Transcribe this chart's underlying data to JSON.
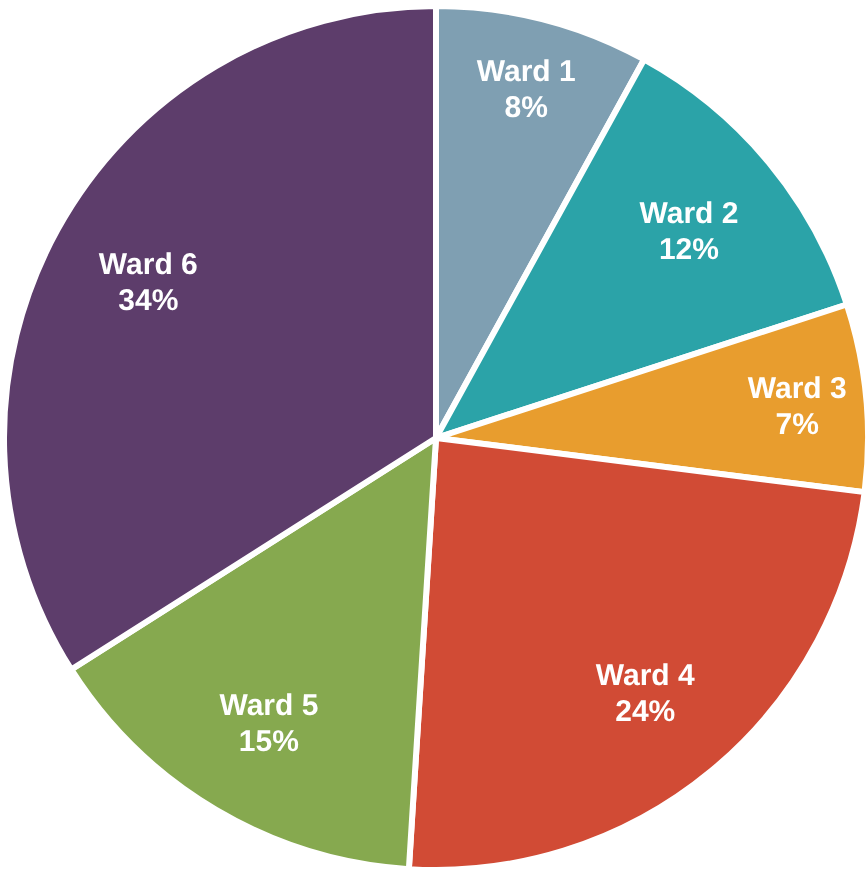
{
  "chart_data": {
    "type": "pie",
    "categories": [
      "Ward 1",
      "Ward 2",
      "Ward 3",
      "Ward 4",
      "Ward 5",
      "Ward 6"
    ],
    "values": [
      8,
      12,
      7,
      24,
      15,
      34
    ],
    "colors": [
      "#7f9fb2",
      "#2ba3a8",
      "#e89d2e",
      "#d14b35",
      "#86a94f",
      "#5d3d6b"
    ],
    "value_labels": [
      "8%",
      "12%",
      "7%",
      "24%",
      "15%",
      "34%"
    ]
  }
}
